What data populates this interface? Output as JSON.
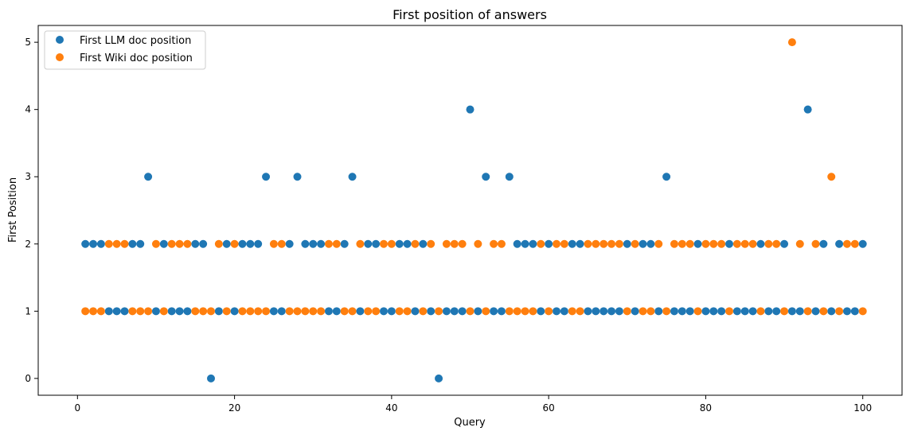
{
  "chart_data": {
    "type": "scatter",
    "title": "First position of answers",
    "xlabel": "Query",
    "ylabel": "First Position",
    "xlim": [
      -5,
      105
    ],
    "ylim": [
      -0.25,
      5.25
    ],
    "xticks": [
      0,
      20,
      40,
      60,
      80,
      100
    ],
    "yticks": [
      0,
      1,
      2,
      3,
      4,
      5
    ],
    "grid": false,
    "legend_position": "top-left",
    "x": [
      1,
      2,
      3,
      4,
      5,
      6,
      7,
      8,
      9,
      10,
      11,
      12,
      13,
      14,
      15,
      16,
      17,
      18,
      19,
      20,
      21,
      22,
      23,
      24,
      25,
      26,
      27,
      28,
      29,
      30,
      31,
      32,
      33,
      34,
      35,
      36,
      37,
      38,
      39,
      40,
      41,
      42,
      43,
      44,
      45,
      46,
      47,
      48,
      49,
      50,
      51,
      52,
      53,
      54,
      55,
      56,
      57,
      58,
      59,
      60,
      61,
      62,
      63,
      64,
      65,
      66,
      67,
      68,
      69,
      70,
      71,
      72,
      73,
      74,
      75,
      76,
      77,
      78,
      79,
      80,
      81,
      82,
      83,
      84,
      85,
      86,
      87,
      88,
      89,
      90,
      91,
      92,
      93,
      94,
      95,
      96,
      97,
      98,
      99,
      100
    ],
    "series": [
      {
        "name": "First LLM doc position",
        "color": "#1f77b4",
        "values": [
          2,
          2,
          2,
          1,
          1,
          1,
          2,
          2,
          3,
          1,
          2,
          1,
          1,
          1,
          2,
          2,
          0,
          1,
          2,
          1,
          2,
          2,
          2,
          3,
          1,
          1,
          2,
          3,
          2,
          2,
          2,
          1,
          1,
          2,
          3,
          1,
          2,
          2,
          1,
          1,
          2,
          2,
          1,
          2,
          1,
          0,
          1,
          1,
          1,
          4,
          1,
          3,
          1,
          1,
          3,
          2,
          2,
          2,
          1,
          2,
          1,
          1,
          2,
          2,
          1,
          1,
          1,
          1,
          1,
          2,
          1,
          2,
          2,
          1,
          3,
          1,
          1,
          1,
          2,
          1,
          1,
          1,
          2,
          1,
          1,
          1,
          2,
          1,
          1,
          2,
          1,
          1,
          4,
          1,
          2,
          1,
          2,
          1,
          1,
          2
        ]
      },
      {
        "name": "First Wiki doc position",
        "color": "#ff7f0e",
        "values": [
          1,
          1,
          1,
          2,
          2,
          2,
          1,
          1,
          1,
          2,
          1,
          2,
          2,
          2,
          1,
          1,
          1,
          2,
          1,
          2,
          1,
          1,
          1,
          1,
          2,
          2,
          1,
          1,
          1,
          1,
          1,
          2,
          2,
          1,
          1,
          2,
          1,
          1,
          2,
          2,
          1,
          1,
          2,
          1,
          2,
          1,
          2,
          2,
          2,
          1,
          2,
          1,
          2,
          2,
          1,
          1,
          1,
          1,
          2,
          1,
          2,
          2,
          1,
          1,
          2,
          2,
          2,
          2,
          2,
          1,
          2,
          1,
          1,
          2,
          1,
          2,
          2,
          2,
          1,
          2,
          2,
          2,
          1,
          2,
          2,
          2,
          1,
          2,
          2,
          1,
          5,
          2,
          1,
          2,
          1,
          3,
          1,
          2,
          2,
          1
        ]
      }
    ]
  }
}
